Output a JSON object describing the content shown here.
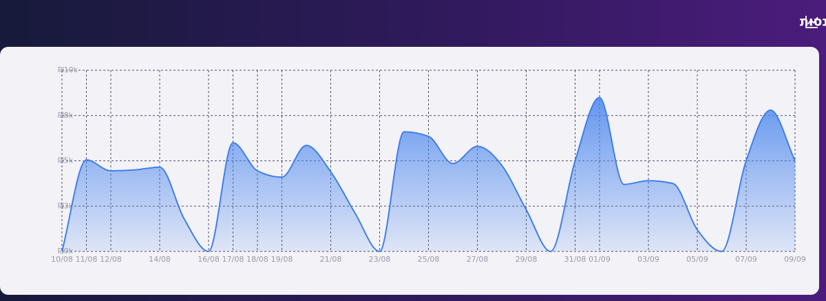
{
  "chart_data": {
    "type": "area",
    "title": "מגמת הכנסות",
    "categories": [
      "10/08",
      "11/08",
      "12/08",
      null,
      "14/08",
      null,
      "16/08",
      "17/08",
      "18/08",
      "19/08",
      null,
      "21/08",
      null,
      "23/08",
      null,
      "25/08",
      null,
      "27/08",
      null,
      "29/08",
      null,
      "31/08",
      "01/09",
      null,
      "03/09",
      null,
      "05/09",
      null,
      "07/09",
      null,
      "09/09"
    ],
    "values": [
      0,
      5050,
      4450,
      4500,
      4650,
      1800,
      0,
      6000,
      4450,
      4100,
      5850,
      4400,
      2100,
      0,
      6600,
      6350,
      4850,
      5800,
      4750,
      2300,
      0,
      5000,
      8500,
      3700,
      3900,
      3750,
      1200,
      0,
      5000,
      7800,
      5000
    ],
    "color": "#3f7fe6",
    "ylim": [
      0,
      10000
    ],
    "yticks": [
      {
        "value": 0,
        "label": "₪0k"
      },
      {
        "value": 2500,
        "label": "₪3k"
      },
      {
        "value": 5000,
        "label": "₪5k"
      },
      {
        "value": 7500,
        "label": "₪8k"
      },
      {
        "value": 10000,
        "label": "₪10k"
      }
    ],
    "grid": true
  }
}
